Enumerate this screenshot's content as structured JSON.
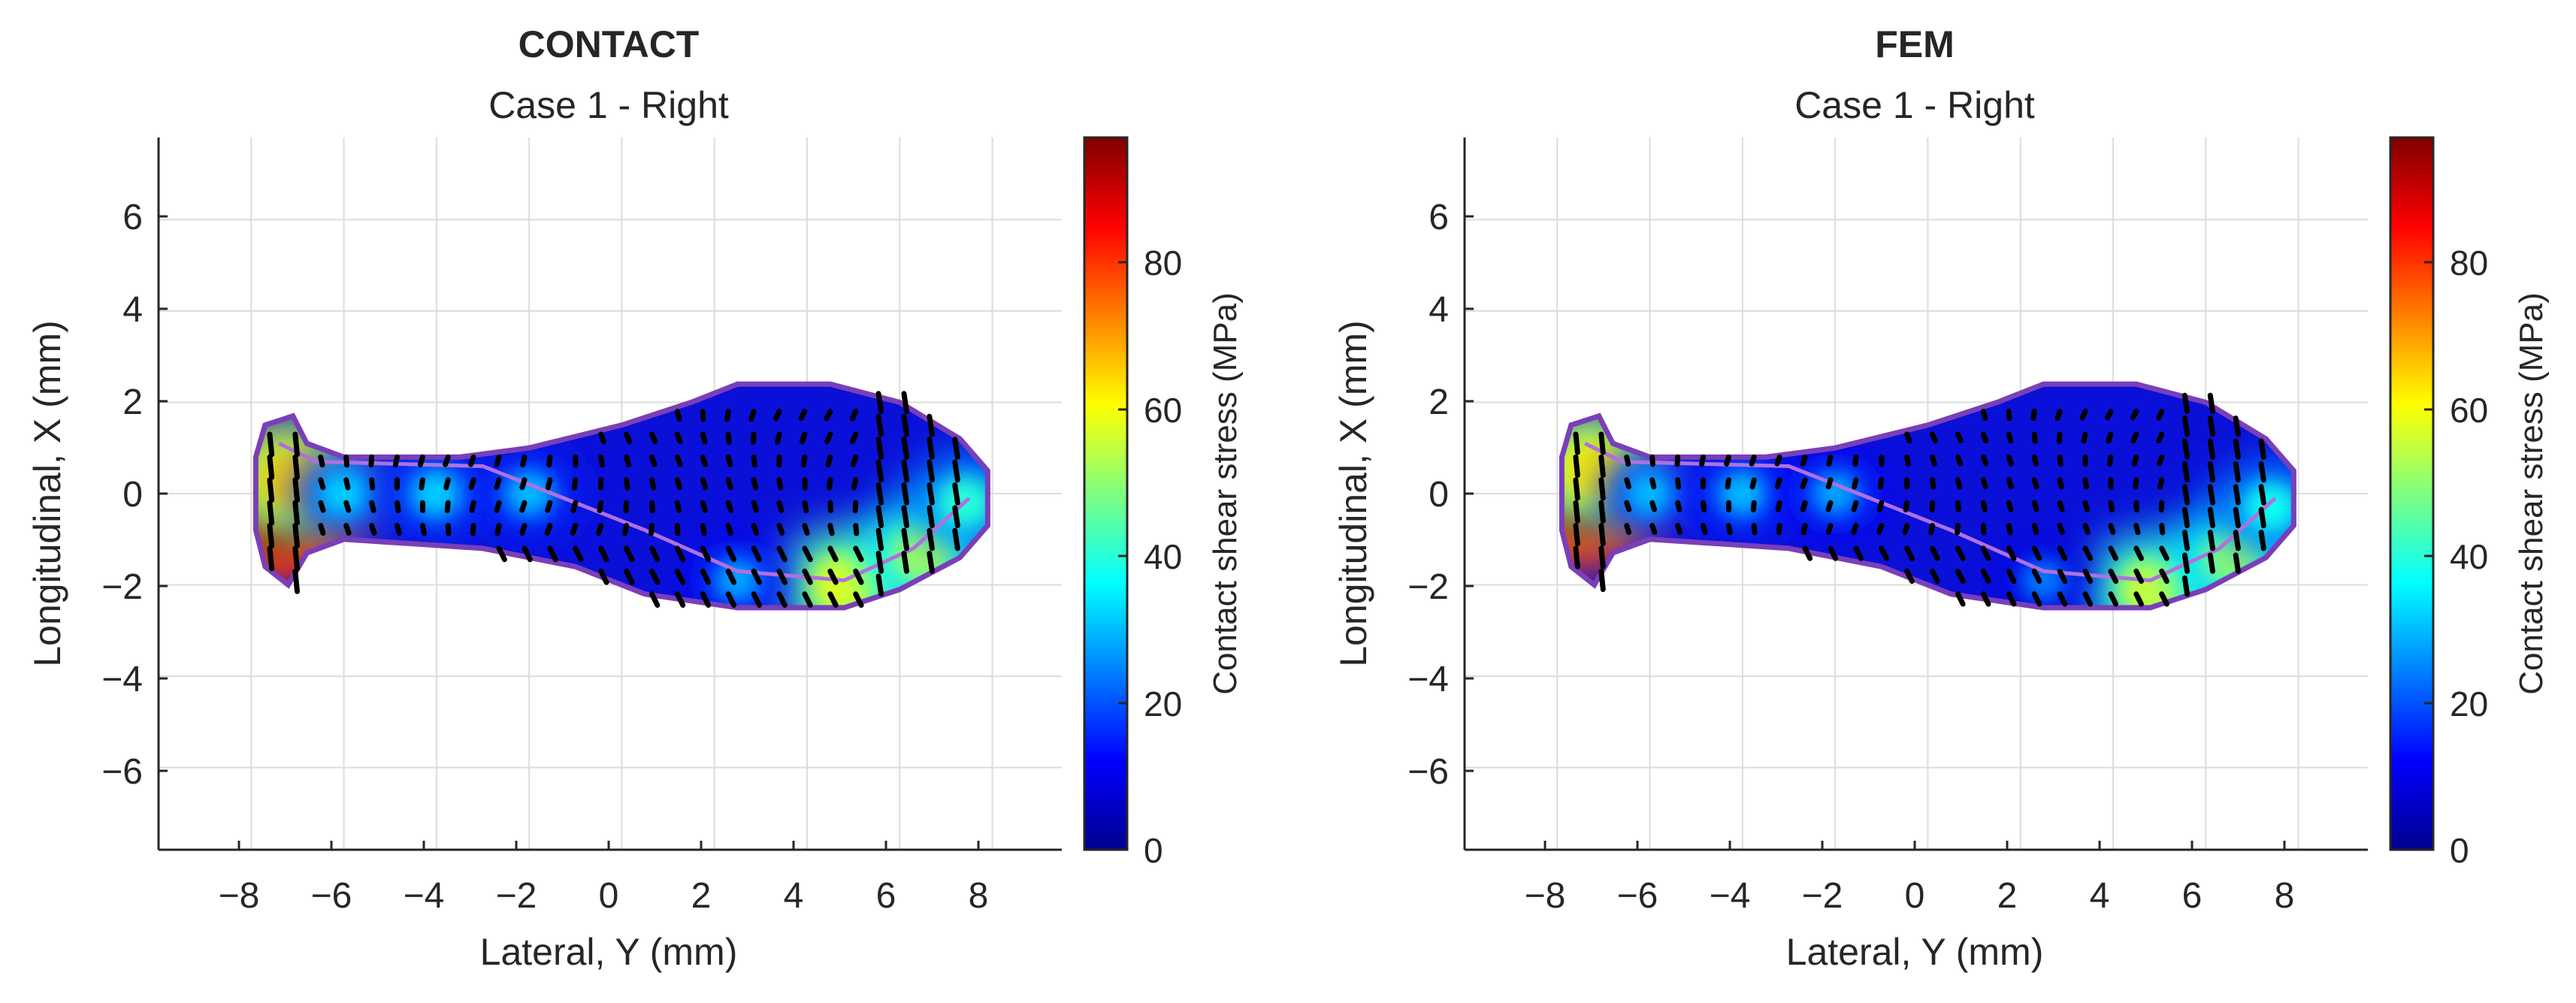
{
  "figure": {
    "colors": {
      "axis": "#262626",
      "grid": "#dcdcdc",
      "outline": "#7a3fb8",
      "arrow": "#000000",
      "inner_contour": "#b070e0"
    }
  },
  "chart_data": [
    {
      "type": "heatmap",
      "title": "CONTACT",
      "subtitle": "Case 1 - Right",
      "xlabel": "Lateral, Y (mm)",
      "ylabel": "Longitudinal, X (mm)",
      "xlim": [
        -10,
        9.5
      ],
      "ylim": [
        -7.8,
        7.8
      ],
      "xticks": [
        -8,
        -6,
        -4,
        -2,
        0,
        2,
        4,
        6,
        8
      ],
      "yticks": [
        -6,
        -4,
        -2,
        0,
        2,
        4,
        6
      ],
      "xtick_labels": [
        "−8",
        "−6",
        "−4",
        "−2",
        "0",
        "2",
        "4",
        "6",
        "8"
      ],
      "ytick_labels": [
        "−6",
        "−4",
        "−2",
        "0",
        "2",
        "4",
        "6"
      ],
      "grid": true,
      "colorbar": {
        "label": "Contact shear stress (MPa)",
        "range": [
          0,
          97
        ],
        "ticks": [
          0,
          20,
          40,
          60,
          80
        ],
        "tick_labels": [
          "0",
          "20",
          "40",
          "60",
          "80"
        ],
        "colormap": "jet"
      },
      "contact_outline": [
        [
          -7.9,
          0.8
        ],
        [
          -7.7,
          1.5
        ],
        [
          -7.1,
          1.7
        ],
        [
          -6.8,
          1.1
        ],
        [
          -6.0,
          0.8
        ],
        [
          -4.5,
          0.8
        ],
        [
          -3.5,
          0.8
        ],
        [
          -2.0,
          1.0
        ],
        [
          0.0,
          1.5
        ],
        [
          1.5,
          2.0
        ],
        [
          2.5,
          2.4
        ],
        [
          4.5,
          2.4
        ],
        [
          6.0,
          2.0
        ],
        [
          7.3,
          1.2
        ],
        [
          7.9,
          0.5
        ],
        [
          7.9,
          -0.7
        ],
        [
          7.3,
          -1.4
        ],
        [
          6.0,
          -2.1
        ],
        [
          4.8,
          -2.5
        ],
        [
          2.5,
          -2.5
        ],
        [
          0.5,
          -2.2
        ],
        [
          -1.0,
          -1.6
        ],
        [
          -3.0,
          -1.2
        ],
        [
          -4.5,
          -1.1
        ],
        [
          -6.0,
          -1.0
        ],
        [
          -6.8,
          -1.3
        ],
        [
          -7.2,
          -2.0
        ],
        [
          -7.7,
          -1.6
        ],
        [
          -7.9,
          -0.8
        ]
      ],
      "hot_spots": [
        {
          "y": -7.5,
          "x": -0.4,
          "value": 95
        },
        {
          "y": -7.1,
          "x": 0.3,
          "value": 65
        },
        {
          "y": -6.0,
          "x": 0.0,
          "value": 32
        },
        {
          "y": -4.0,
          "x": 0.0,
          "value": 32
        },
        {
          "y": -2.0,
          "x": 0.0,
          "value": 30
        },
        {
          "y": 4.8,
          "x": -2.0,
          "value": 58
        },
        {
          "y": 6.5,
          "x": -1.3,
          "value": 52
        },
        {
          "y": 7.4,
          "x": -0.2,
          "value": 40
        },
        {
          "y": 2.5,
          "x": -1.9,
          "value": 28
        }
      ],
      "arrow_scale": 1.0
    },
    {
      "type": "heatmap",
      "title": "FEM",
      "subtitle": "Case 1 - Right",
      "xlabel": "Lateral, Y (mm)",
      "ylabel": "Longitudinal, X (mm)",
      "xlim": [
        -10,
        9.5
      ],
      "ylim": [
        -7.8,
        7.8
      ],
      "xticks": [
        -8,
        -6,
        -4,
        -2,
        0,
        2,
        4,
        6,
        8
      ],
      "yticks": [
        -6,
        -4,
        -2,
        0,
        2,
        4,
        6
      ],
      "xtick_labels": [
        "−8",
        "−6",
        "−4",
        "−2",
        "0",
        "2",
        "4",
        "6",
        "8"
      ],
      "ytick_labels": [
        "−6",
        "−4",
        "−2",
        "0",
        "2",
        "4",
        "6"
      ],
      "grid": true,
      "colorbar": {
        "label": "Contact shear stress (MPa)",
        "range": [
          0,
          97
        ],
        "ticks": [
          0,
          20,
          40,
          60,
          80
        ],
        "tick_labels": [
          "0",
          "20",
          "40",
          "60",
          "80"
        ],
        "colormap": "jet"
      },
      "contact_outline": [
        [
          -7.9,
          0.8
        ],
        [
          -7.7,
          1.5
        ],
        [
          -7.1,
          1.7
        ],
        [
          -6.8,
          1.1
        ],
        [
          -6.0,
          0.8
        ],
        [
          -4.5,
          0.8
        ],
        [
          -3.5,
          0.8
        ],
        [
          -2.0,
          1.0
        ],
        [
          0.0,
          1.5
        ],
        [
          1.5,
          2.0
        ],
        [
          2.5,
          2.4
        ],
        [
          4.5,
          2.4
        ],
        [
          6.0,
          2.0
        ],
        [
          7.3,
          1.2
        ],
        [
          7.9,
          0.5
        ],
        [
          7.9,
          -0.7
        ],
        [
          7.3,
          -1.4
        ],
        [
          6.0,
          -2.1
        ],
        [
          4.8,
          -2.5
        ],
        [
          2.5,
          -2.5
        ],
        [
          0.5,
          -2.2
        ],
        [
          -1.0,
          -1.6
        ],
        [
          -3.0,
          -1.2
        ],
        [
          -4.5,
          -1.1
        ],
        [
          -6.0,
          -1.0
        ],
        [
          -6.8,
          -1.3
        ],
        [
          -7.2,
          -2.0
        ],
        [
          -7.7,
          -1.6
        ],
        [
          -7.9,
          -0.8
        ]
      ],
      "hot_spots": [
        {
          "y": -7.6,
          "x": -0.1,
          "value": 93
        },
        {
          "y": -7.2,
          "x": 0.5,
          "value": 62
        },
        {
          "y": -6.0,
          "x": 0.0,
          "value": 30
        },
        {
          "y": -4.0,
          "x": 0.0,
          "value": 30
        },
        {
          "y": -2.0,
          "x": 0.0,
          "value": 28
        },
        {
          "y": 4.8,
          "x": -2.1,
          "value": 55
        },
        {
          "y": 6.6,
          "x": -1.4,
          "value": 50
        },
        {
          "y": 7.4,
          "x": -0.3,
          "value": 38
        },
        {
          "y": 2.5,
          "x": -1.9,
          "value": 24
        }
      ],
      "arrow_scale": 0.9
    }
  ]
}
